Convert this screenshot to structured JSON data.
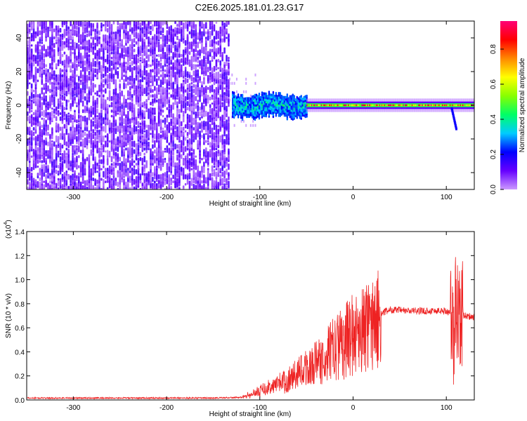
{
  "figure": {
    "title": "C2E6.2025.181.01.23.G17"
  },
  "chart_data": [
    {
      "type": "heatmap",
      "xlabel": "Height of straight line (km)",
      "ylabel": "Frequency (Hz)",
      "xlim": [
        -350,
        130
      ],
      "ylim": [
        -50,
        50
      ],
      "xticks": [
        -300,
        -200,
        -100,
        0,
        100
      ],
      "yticks": [
        -40,
        -20,
        0,
        20,
        40
      ],
      "colorbar": {
        "label": "Normalized spectral amplitude",
        "range": [
          0.0,
          0.96
        ],
        "ticks": [
          0.0,
          0.2,
          0.4,
          0.6,
          0.8
        ],
        "colormap": [
          "#cc99ff",
          "#6600ff",
          "#0000ff",
          "#00ccff",
          "#00ff66",
          "#88ff00",
          "#ffff00",
          "#ff8800",
          "#ff0000",
          "#ff0077"
        ]
      },
      "regions": [
        {
          "x_range": [
            -350,
            -133
          ],
          "f_range": [
            -50,
            50
          ],
          "amplitude": [
            0.02,
            0.15
          ]
        },
        {
          "x_range": [
            -133,
            -105
          ],
          "f_range": [
            -12,
            20
          ],
          "amplitude": [
            0.0,
            0.08
          ]
        },
        {
          "x_range": [
            -130,
            -50
          ],
          "center_f": 0,
          "half_width_f": 6,
          "amplitude": [
            0.2,
            0.45
          ]
        },
        {
          "x_range": [
            -50,
            130
          ],
          "center_f": 0,
          "half_width_f": 2,
          "amplitude": [
            0.5,
            0.95
          ]
        },
        {
          "x_range": [
            104,
            112
          ],
          "center_f": -15,
          "amplitude": 0.2
        }
      ]
    },
    {
      "type": "line",
      "xlabel": "Height of straight line (km)",
      "ylabel": "SNR (10 * v/v)",
      "exponent_label": "(x10",
      "exponent_power": "4",
      "exponent_close": ")",
      "xlim": [
        -350,
        130
      ],
      "ylim": [
        0.0,
        1.4
      ],
      "xticks": [
        -300,
        -200,
        -100,
        0,
        100
      ],
      "yticks": [
        "0.0",
        "0.2",
        "0.4",
        "0.6",
        "0.8",
        "1.0",
        "1.2",
        "1.4"
      ],
      "color": "#ee2222",
      "series": [
        {
          "x": [
            -350,
            -300,
            -250,
            -200,
            -150,
            -120,
            -110,
            -100,
            -90,
            -80,
            -70,
            -60,
            -50,
            -40,
            -30,
            -20,
            -10,
            0,
            10,
            20,
            30,
            40,
            60,
            80,
            100,
            105,
            108,
            110,
            115,
            120,
            130
          ],
          "y": [
            0.01,
            0.01,
            0.01,
            0.01,
            0.01,
            0.015,
            0.03,
            0.07,
            0.1,
            0.14,
            0.17,
            0.22,
            0.28,
            0.32,
            0.38,
            0.46,
            0.52,
            0.58,
            0.63,
            0.68,
            0.72,
            0.75,
            0.74,
            0.74,
            0.74,
            0.72,
            0.45,
            0.8,
            0.72,
            0.7,
            0.69
          ]
        }
      ]
    }
  ]
}
